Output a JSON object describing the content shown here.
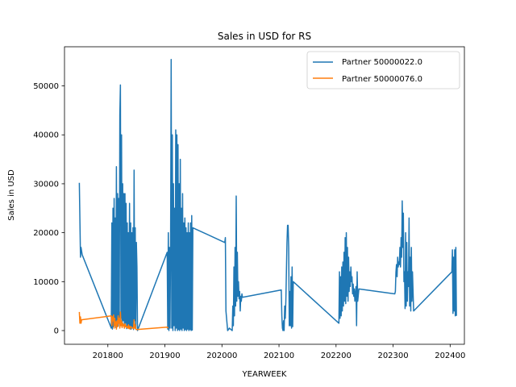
{
  "chart_data": {
    "type": "line",
    "title": "Sales in USD for RS",
    "xlabel": "YEARWEEK",
    "ylabel": "Sales in USD",
    "xlim": [
      201724,
      202425
    ],
    "ylim": [
      -2800,
      58000
    ],
    "x_ticks": [
      201800,
      201900,
      202000,
      202100,
      202200,
      202300,
      202400
    ],
    "y_ticks": [
      0,
      10000,
      20000,
      30000,
      40000,
      50000
    ],
    "grid": false,
    "legend_position": "top-right",
    "series": [
      {
        "name": "Partner 50000022.0",
        "color": "#1f77b4",
        "points": [
          [
            201750,
            30200
          ],
          [
            201752,
            15000
          ],
          [
            201753,
            17000
          ],
          [
            201755,
            15500
          ],
          [
            201806,
            500
          ],
          [
            201807,
            22000
          ],
          [
            201808,
            300
          ],
          [
            201809,
            25000
          ],
          [
            201810,
            800
          ],
          [
            201811,
            27000
          ],
          [
            201812,
            1500
          ],
          [
            201813,
            23000
          ],
          [
            201814,
            600
          ],
          [
            201815,
            33500
          ],
          [
            201816,
            2000
          ],
          [
            201817,
            28000
          ],
          [
            201818,
            900
          ],
          [
            201819,
            27000
          ],
          [
            201820,
            1500
          ],
          [
            201821,
            44000
          ],
          [
            201822,
            50200
          ],
          [
            201823,
            2500
          ],
          [
            201824,
            40000
          ],
          [
            201825,
            1000
          ],
          [
            201826,
            30000
          ],
          [
            201827,
            2000
          ],
          [
            201828,
            28000
          ],
          [
            201829,
            500
          ],
          [
            201830,
            28000
          ],
          [
            201831,
            1500
          ],
          [
            201832,
            26000
          ],
          [
            201833,
            400
          ],
          [
            201834,
            22000
          ],
          [
            201835,
            800
          ],
          [
            201836,
            20000
          ],
          [
            201837,
            1000
          ],
          [
            201838,
            26000
          ],
          [
            201839,
            500
          ],
          [
            201840,
            22000
          ],
          [
            201841,
            300
          ],
          [
            201842,
            20000
          ],
          [
            201843,
            600
          ],
          [
            201844,
            21000
          ],
          [
            201845,
            200
          ],
          [
            201846,
            32800
          ],
          [
            201847,
            2000
          ],
          [
            201848,
            21000
          ],
          [
            201849,
            500
          ],
          [
            201850,
            18000
          ],
          [
            201851,
            13000
          ],
          [
            201852,
            0
          ],
          [
            201904,
            16000
          ],
          [
            201905,
            300
          ],
          [
            201906,
            20000
          ],
          [
            201907,
            0
          ],
          [
            201908,
            17000
          ],
          [
            201909,
            500
          ],
          [
            201910,
            18500
          ],
          [
            201911,
            55400
          ],
          [
            201912,
            500
          ],
          [
            201913,
            40000
          ],
          [
            201914,
            0
          ],
          [
            201915,
            30000
          ],
          [
            201916,
            1000
          ],
          [
            201917,
            25000
          ],
          [
            201918,
            0
          ],
          [
            201919,
            41000
          ],
          [
            201920,
            500
          ],
          [
            201921,
            40000
          ],
          [
            201922,
            0
          ],
          [
            201923,
            38000
          ],
          [
            201924,
            200
          ],
          [
            201925,
            30000
          ],
          [
            201926,
            0
          ],
          [
            201927,
            35000
          ],
          [
            201928,
            300
          ],
          [
            201929,
            25000
          ],
          [
            201930,
            0
          ],
          [
            201931,
            28000
          ],
          [
            201932,
            500
          ],
          [
            201933,
            22000
          ],
          [
            201934,
            0
          ],
          [
            201935,
            23000
          ],
          [
            201936,
            200
          ],
          [
            201937,
            21000
          ],
          [
            201938,
            0
          ],
          [
            201939,
            20000
          ],
          [
            201940,
            300
          ],
          [
            201941,
            22000
          ],
          [
            201942,
            0
          ],
          [
            201943,
            20000
          ],
          [
            201944,
            200
          ],
          [
            201945,
            22000
          ],
          [
            201946,
            0
          ],
          [
            201947,
            23500
          ],
          [
            201948,
            100
          ],
          [
            201949,
            21000
          ],
          [
            202005,
            18000
          ],
          [
            202006,
            19000
          ],
          [
            202007,
            4000
          ],
          [
            202010,
            0
          ],
          [
            202013,
            500
          ],
          [
            202018,
            0
          ],
          [
            202019,
            5000
          ],
          [
            202020,
            1000
          ],
          [
            202021,
            13000
          ],
          [
            202022,
            3000
          ],
          [
            202023,
            17000
          ],
          [
            202024,
            5000
          ],
          [
            202025,
            27500
          ],
          [
            202026,
            6000
          ],
          [
            202027,
            16000
          ],
          [
            202028,
            7000
          ],
          [
            202029,
            10000
          ],
          [
            202030,
            6500
          ],
          [
            202031,
            8000
          ],
          [
            202032,
            4000
          ],
          [
            202033,
            7000
          ],
          [
            202034,
            6000
          ],
          [
            202035,
            7500
          ],
          [
            202036,
            6800
          ],
          [
            202104,
            8300
          ],
          [
            202105,
            3000
          ],
          [
            202106,
            500
          ],
          [
            202107,
            0
          ],
          [
            202108,
            2000
          ],
          [
            202109,
            0
          ],
          [
            202110,
            5000
          ],
          [
            202111,
            2500
          ],
          [
            202112,
            6000
          ],
          [
            202113,
            12000
          ],
          [
            202114,
            18000
          ],
          [
            202115,
            21500
          ],
          [
            202116,
            21500
          ],
          [
            202117,
            17000
          ],
          [
            202118,
            1000
          ],
          [
            202119,
            8000
          ],
          [
            202120,
            1000
          ],
          [
            202121,
            11000
          ],
          [
            202122,
            500
          ],
          [
            202123,
            13000
          ],
          [
            202124,
            800
          ],
          [
            202125,
            10000
          ],
          [
            202205,
            1500
          ],
          [
            202206,
            12000
          ],
          [
            202207,
            2500
          ],
          [
            202208,
            11000
          ],
          [
            202209,
            3000
          ],
          [
            202210,
            13000
          ],
          [
            202211,
            4000
          ],
          [
            202212,
            14000
          ],
          [
            202213,
            5000
          ],
          [
            202214,
            16000
          ],
          [
            202215,
            6000
          ],
          [
            202216,
            19000
          ],
          [
            202217,
            5500
          ],
          [
            202218,
            20000
          ],
          [
            202219,
            7000
          ],
          [
            202220,
            17000
          ],
          [
            202221,
            6000
          ],
          [
            202222,
            15000
          ],
          [
            202223,
            8000
          ],
          [
            202224,
            12000
          ],
          [
            202225,
            9000
          ],
          [
            202226,
            13000
          ],
          [
            202227,
            10000
          ],
          [
            202228,
            11000
          ],
          [
            202229,
            7500
          ],
          [
            202230,
            9500
          ],
          [
            202231,
            7000
          ],
          [
            202232,
            8500
          ],
          [
            202233,
            6000
          ],
          [
            202235,
            9000
          ],
          [
            202236,
            1000
          ],
          [
            202237,
            12000
          ],
          [
            202238,
            6000
          ],
          [
            202240,
            8500
          ],
          [
            202303,
            7500
          ],
          [
            202304,
            8000
          ],
          [
            202305,
            12000
          ],
          [
            202306,
            13500
          ],
          [
            202307,
            11000
          ],
          [
            202308,
            15000
          ],
          [
            202309,
            13000
          ],
          [
            202310,
            14000
          ],
          [
            202311,
            13500
          ],
          [
            202312,
            17000
          ],
          [
            202313,
            13000
          ],
          [
            202314,
            19000
          ],
          [
            202315,
            15000
          ],
          [
            202316,
            26500
          ],
          [
            202317,
            17000
          ],
          [
            202318,
            24000
          ],
          [
            202319,
            10000
          ],
          [
            202320,
            12000
          ],
          [
            202321,
            4500
          ],
          [
            202322,
            20000
          ],
          [
            202323,
            5000
          ],
          [
            202324,
            18000
          ],
          [
            202325,
            6000
          ],
          [
            202326,
            12000
          ],
          [
            202327,
            9000
          ],
          [
            202328,
            23000
          ],
          [
            202329,
            5000
          ],
          [
            202330,
            15000
          ],
          [
            202331,
            4000
          ],
          [
            202332,
            17000
          ],
          [
            202333,
            6000
          ],
          [
            202334,
            12000
          ],
          [
            202335,
            8000
          ],
          [
            202336,
            4000
          ],
          [
            202403,
            12000
          ],
          [
            202404,
            16500
          ],
          [
            202405,
            3500
          ],
          [
            202406,
            15000
          ],
          [
            202407,
            4000
          ],
          [
            202408,
            16500
          ],
          [
            202409,
            3000
          ],
          [
            202410,
            17000
          ],
          [
            202411,
            3000
          ]
        ]
      },
      {
        "name": "Partner 50000076.0",
        "color": "#ff7f0e",
        "points": [
          [
            201750,
            3800
          ],
          [
            201751,
            1500
          ],
          [
            201752,
            2800
          ],
          [
            201753,
            1500
          ],
          [
            201754,
            2200
          ],
          [
            201806,
            3000
          ],
          [
            201807,
            1000
          ],
          [
            201808,
            2800
          ],
          [
            201809,
            2000
          ],
          [
            201810,
            3200
          ],
          [
            201811,
            500
          ],
          [
            201812,
            2500
          ],
          [
            201813,
            1000
          ],
          [
            201814,
            1800
          ],
          [
            201815,
            300
          ],
          [
            201816,
            2000
          ],
          [
            201817,
            800
          ],
          [
            201818,
            3000
          ],
          [
            201819,
            1500
          ],
          [
            201820,
            2500
          ],
          [
            201821,
            500
          ],
          [
            201822,
            3800
          ],
          [
            201823,
            1000
          ],
          [
            201824,
            2000
          ],
          [
            201825,
            600
          ],
          [
            201826,
            1500
          ],
          [
            201827,
            1000
          ],
          [
            201828,
            1200
          ],
          [
            201829,
            500
          ],
          [
            201830,
            1400
          ],
          [
            201831,
            800
          ],
          [
            201832,
            1000
          ],
          [
            201833,
            600
          ],
          [
            201834,
            800
          ],
          [
            201835,
            500
          ],
          [
            201836,
            1200
          ],
          [
            201837,
            400
          ],
          [
            201838,
            900
          ],
          [
            201839,
            300
          ],
          [
            201840,
            800
          ],
          [
            201845,
            400
          ],
          [
            201846,
            2200
          ],
          [
            201847,
            500
          ],
          [
            201848,
            1200
          ],
          [
            201849,
            300
          ],
          [
            201850,
            200
          ],
          [
            201904,
            700
          ],
          [
            201906,
            500
          ]
        ]
      }
    ]
  }
}
